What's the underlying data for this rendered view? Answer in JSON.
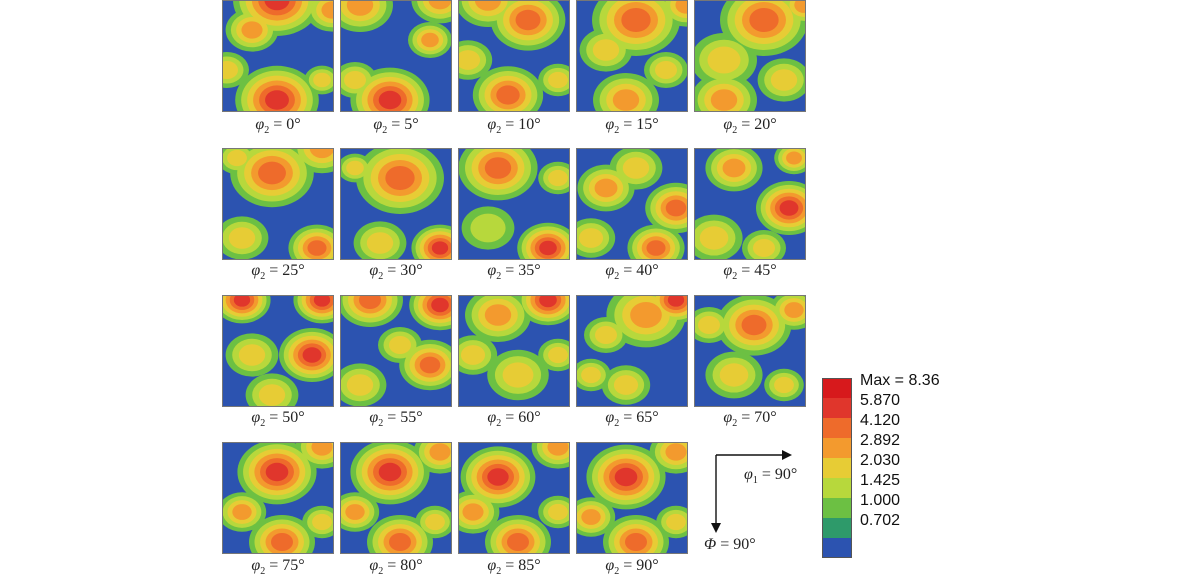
{
  "panels": [
    {
      "symbol": "φ",
      "sub": "2",
      "value": "= 0°"
    },
    {
      "symbol": "φ",
      "sub": "2",
      "value": "= 5°"
    },
    {
      "symbol": "φ",
      "sub": "2",
      "value": "= 10°"
    },
    {
      "symbol": "φ",
      "sub": "2",
      "value": "= 15°"
    },
    {
      "symbol": "φ",
      "sub": "2",
      "value": "= 20°"
    },
    {
      "symbol": "φ",
      "sub": "2",
      "value": "= 25°"
    },
    {
      "symbol": "φ",
      "sub": "2",
      "value": "= 30°"
    },
    {
      "symbol": "φ",
      "sub": "2",
      "value": "= 35°"
    },
    {
      "symbol": "φ",
      "sub": "2",
      "value": "= 40°"
    },
    {
      "symbol": "φ",
      "sub": "2",
      "value": "= 45°"
    },
    {
      "symbol": "φ",
      "sub": "2",
      "value": "= 50°"
    },
    {
      "symbol": "φ",
      "sub": "2",
      "value": "= 55°"
    },
    {
      "symbol": "φ",
      "sub": "2",
      "value": "= 60°"
    },
    {
      "symbol": "φ",
      "sub": "2",
      "value": "= 65°"
    },
    {
      "symbol": "φ",
      "sub": "2",
      "value": "= 70°"
    },
    {
      "symbol": "φ",
      "sub": "2",
      "value": "= 75°"
    },
    {
      "symbol": "φ",
      "sub": "2",
      "value": "= 80°"
    },
    {
      "symbol": "φ",
      "sub": "2",
      "value": "= 85°"
    },
    {
      "symbol": "φ",
      "sub": "2",
      "value": "= 90°"
    }
  ],
  "legend": {
    "levels": [
      {
        "label": "Max = 8.36",
        "color": "#d7191c"
      },
      {
        "label": "5.870",
        "color": "#e0362c"
      },
      {
        "label": "4.120",
        "color": "#ee6b2b"
      },
      {
        "label": "2.892",
        "color": "#f39a2e"
      },
      {
        "label": "2.030",
        "color": "#e7cc35"
      },
      {
        "label": "1.425",
        "color": "#b7d83c"
      },
      {
        "label": "1.000",
        "color": "#6cc043"
      },
      {
        "label": "0.702",
        "color": "#2e9a6a"
      },
      {
        "label": "",
        "color": "#2c53b0"
      }
    ]
  },
  "axes": {
    "phi1": {
      "symbol": "φ",
      "sub": "1",
      "value": "= 90°"
    },
    "Phi": {
      "symbol": "Φ",
      "value": "= 90°"
    }
  }
}
